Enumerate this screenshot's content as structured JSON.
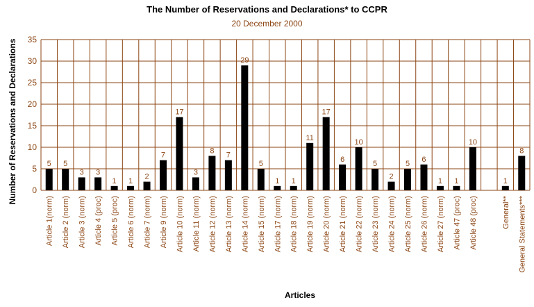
{
  "chart_data": {
    "type": "bar",
    "title": "The Number of Reservations and Declarations* to CCPR",
    "subtitle": "20 December 2000",
    "xlabel": "Articles",
    "ylabel": "Number of Reservations and Declarations",
    "ylim": [
      0,
      35
    ],
    "yticks": [
      0,
      5,
      10,
      15,
      20,
      25,
      30,
      35
    ],
    "grid": true,
    "colors": {
      "bar": "#000000",
      "grid": "#8b4513",
      "text": "#8b4513"
    },
    "categories": [
      "Article 1(norm)",
      "Article 2 (norm)",
      "Article 3 (norm)",
      "Article 4 (proc)",
      "Article 5 (proc)",
      "Article 6 (norm)",
      "Article 7 (norm)",
      "Article 9 (norm)",
      "Article 10 (norm)",
      "Article 11 (norm)",
      "Article 12 (norm)",
      "Article 13 (norm)",
      "Article 14 (norm)",
      "Article 15 (norm)",
      "Article 17 (norm)",
      "Article 18 (norm)",
      "Article 19 (norm)",
      "Article 20 (norm)",
      "Article 21 (norm)",
      "Article 22 (norm)",
      "Article 23 (norm)",
      "Article 24 (norm)",
      "Article 25 (norm)",
      "Article 26 (norm)",
      "Article 27 (norm)",
      "Article 47 (proc)",
      "Article 48 (proc)",
      "",
      "General**",
      "General Statements***"
    ],
    "values": [
      5,
      5,
      3,
      3,
      1,
      1,
      2,
      7,
      17,
      3,
      8,
      7,
      29,
      5,
      1,
      1,
      11,
      17,
      6,
      10,
      5,
      2,
      5,
      6,
      1,
      1,
      10,
      null,
      1,
      8
    ]
  }
}
